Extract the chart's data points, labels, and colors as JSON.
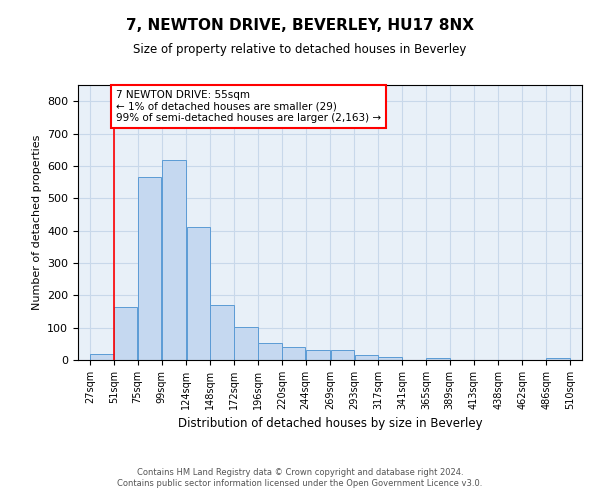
{
  "title": "7, NEWTON DRIVE, BEVERLEY, HU17 8NX",
  "subtitle": "Size of property relative to detached houses in Beverley",
  "xlabel": "Distribution of detached houses by size in Beverley",
  "ylabel": "Number of detached properties",
  "bar_color": "#c5d8f0",
  "bar_edge_color": "#5b9bd5",
  "bar_left_edges": [
    27,
    51,
    75,
    99,
    124,
    148,
    172,
    196,
    220,
    244,
    269,
    293,
    317,
    341,
    365,
    389,
    413,
    438,
    462,
    486
  ],
  "bar_widths": [
    24,
    24,
    24,
    25,
    24,
    24,
    24,
    24,
    24,
    25,
    24,
    24,
    24,
    24,
    24,
    24,
    25,
    24,
    24,
    24
  ],
  "bar_heights": [
    20,
    163,
    565,
    618,
    411,
    170,
    101,
    52,
    40,
    31,
    31,
    15,
    10,
    0,
    7,
    0,
    0,
    0,
    0,
    7
  ],
  "tick_labels": [
    "27sqm",
    "51sqm",
    "75sqm",
    "99sqm",
    "124sqm",
    "148sqm",
    "172sqm",
    "196sqm",
    "220sqm",
    "244sqm",
    "269sqm",
    "293sqm",
    "317sqm",
    "341sqm",
    "365sqm",
    "389sqm",
    "413sqm",
    "438sqm",
    "462sqm",
    "486sqm",
    "510sqm"
  ],
  "tick_positions": [
    27,
    51,
    75,
    99,
    124,
    148,
    172,
    196,
    220,
    244,
    269,
    293,
    317,
    341,
    365,
    389,
    413,
    438,
    462,
    486,
    510
  ],
  "ylim": [
    0,
    850
  ],
  "yticks": [
    0,
    100,
    200,
    300,
    400,
    500,
    600,
    700,
    800
  ],
  "red_line_x": 51,
  "annotation_text": "7 NEWTON DRIVE: 55sqm\n← 1% of detached houses are smaller (29)\n99% of semi-detached houses are larger (2,163) →",
  "footer_line1": "Contains HM Land Registry data © Crown copyright and database right 2024.",
  "footer_line2": "Contains public sector information licensed under the Open Government Licence v3.0.",
  "grid_color": "#c8d8ea",
  "background_color": "#e8f0f8"
}
